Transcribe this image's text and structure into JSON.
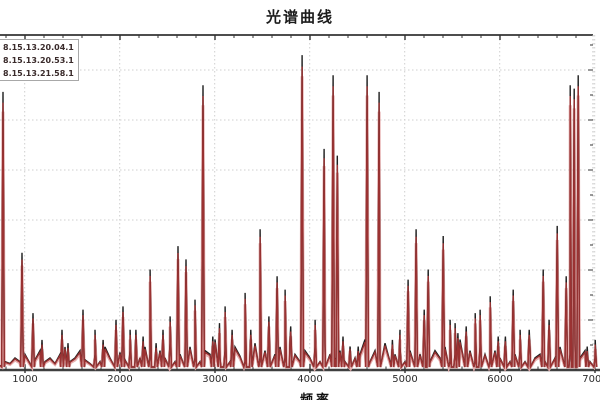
{
  "title": "光谱曲线",
  "x_axis": {
    "label": "频率",
    "tick_labels": [
      "1000",
      "2000",
      "3000",
      "4000",
      "5000",
      "6000",
      "7000"
    ]
  },
  "legend": {
    "text_color": "#3a2b2b",
    "entries": [
      {
        "label": "8.15.13.20.04.1"
      },
      {
        "label": "8.15.13.20.53.1"
      },
      {
        "label": "8.15.13.21.58.1"
      }
    ]
  },
  "colors": {
    "grid": "#cfcfcf",
    "axis": "#3f3f3f",
    "top_border": "#4d4d4d",
    "right_border": "#bdbdbd",
    "tick": "#333333"
  },
  "chart_data": {
    "type": "line",
    "title": "光谱曲线",
    "xlabel": "频率",
    "ylabel": "",
    "x_range": [
      740,
      7050
    ],
    "x_ticks": [
      1000,
      2000,
      3000,
      4000,
      5000,
      6000,
      7000
    ],
    "grid": true,
    "legend_position": "top-left",
    "series": [
      {
        "name": "8.15.13.20.04.1",
        "color": "#e7b0b0",
        "role": "pink"
      },
      {
        "name": "8.15.13.20.53.1",
        "color": "#1f1f1f",
        "role": "black"
      },
      {
        "name": "8.15.13.21.58.1",
        "color": "#9b3232",
        "role": "red"
      }
    ],
    "peaks": [
      [
        772,
        0.83
      ],
      [
        972,
        0.35
      ],
      [
        1087,
        0.17
      ],
      [
        1182,
        0.09
      ],
      [
        1393,
        0.12
      ],
      [
        1456,
        0.08
      ],
      [
        1614,
        0.18
      ],
      [
        1740,
        0.12
      ],
      [
        1825,
        0.09
      ],
      [
        1961,
        0.15
      ],
      [
        2035,
        0.19
      ],
      [
        2109,
        0.12
      ],
      [
        2170,
        0.12
      ],
      [
        2246,
        0.1
      ],
      [
        2320,
        0.3
      ],
      [
        2383,
        0.08
      ],
      [
        2456,
        0.12
      ],
      [
        2530,
        0.16
      ],
      [
        2614,
        0.37
      ],
      [
        2698,
        0.33
      ],
      [
        2793,
        0.21
      ],
      [
        2877,
        0.85
      ],
      [
        2980,
        0.1
      ],
      [
        3050,
        0.14
      ],
      [
        3109,
        0.19
      ],
      [
        3183,
        0.12
      ],
      [
        3320,
        0.23
      ],
      [
        3380,
        0.12
      ],
      [
        3478,
        0.42
      ],
      [
        3570,
        0.16
      ],
      [
        3657,
        0.28
      ],
      [
        3741,
        0.24
      ],
      [
        3800,
        0.13
      ],
      [
        3920,
        0.94
      ],
      [
        4057,
        0.15
      ],
      [
        4152,
        0.66
      ],
      [
        4246,
        0.88
      ],
      [
        4290,
        0.64
      ],
      [
        4350,
        0.1
      ],
      [
        4425,
        0.07
      ],
      [
        4510,
        0.07
      ],
      [
        4604,
        0.88
      ],
      [
        4731,
        0.83
      ],
      [
        4870,
        0.09
      ],
      [
        4950,
        0.12
      ],
      [
        5036,
        0.27
      ],
      [
        5120,
        0.42
      ],
      [
        5205,
        0.18
      ],
      [
        5247,
        0.3
      ],
      [
        5405,
        0.4
      ],
      [
        5478,
        0.15
      ],
      [
        5531,
        0.14
      ],
      [
        5560,
        0.11
      ],
      [
        5647,
        0.13
      ],
      [
        5742,
        0.17
      ],
      [
        5794,
        0.18
      ],
      [
        5900,
        0.22
      ],
      [
        5984,
        0.1
      ],
      [
        6060,
        0.1
      ],
      [
        6142,
        0.24
      ],
      [
        6215,
        0.12
      ],
      [
        6310,
        0.12
      ],
      [
        6458,
        0.3
      ],
      [
        6520,
        0.15
      ],
      [
        6605,
        0.43
      ],
      [
        6700,
        0.28
      ],
      [
        6742,
        0.85
      ],
      [
        6784,
        0.84
      ],
      [
        6826,
        0.88
      ],
      [
        6921,
        0.07
      ],
      [
        7005,
        0.09
      ]
    ],
    "baseline_noise": [
      0.01,
      0.02,
      0.015,
      0.03,
      0.02,
      0.04,
      0.015,
      0.025,
      0.05,
      0.02,
      0.03,
      0.015,
      0.04,
      0.06,
      0.02,
      0.03,
      0.05,
      0.025,
      0.015,
      0.04,
      0.02,
      0.06,
      0.03,
      0.02,
      0.045,
      0.025,
      0.05,
      0.02,
      0.03,
      0.06,
      0.04,
      0.02,
      0.05,
      0.03,
      0.07,
      0.02,
      0.04,
      0.025,
      0.06,
      0.03,
      0.02,
      0.05,
      0.04,
      0.08,
      0.03,
      0.05,
      0.02,
      0.06,
      0.035,
      0.02,
      0.04,
      0.07,
      0.03,
      0.05,
      0.02,
      0.04,
      0.06,
      0.03,
      0.08,
      0.04,
      0.02,
      0.05,
      0.03,
      0.06,
      0.02,
      0.07,
      0.04,
      0.03,
      0.05,
      0.02,
      0.06,
      0.03,
      0.04,
      0.08,
      0.02,
      0.05,
      0.03,
      0.07,
      0.02,
      0.04,
      0.06,
      0.02,
      0.05,
      0.03,
      0.04,
      0.07,
      0.02,
      0.05,
      0.03,
      0.06,
      0.02,
      0.04,
      0.08,
      0.03,
      0.05,
      0.02,
      0.06,
      0.04,
      0.02,
      0.05,
      0.03,
      0.07,
      0.02,
      0.04,
      0.05,
      0.02,
      0.06,
      0.03,
      0.04,
      0.02,
      0.05,
      0.03,
      0.06,
      0.02,
      0.04,
      0.07,
      0.03,
      0.05,
      0.02,
      0.03
    ]
  }
}
